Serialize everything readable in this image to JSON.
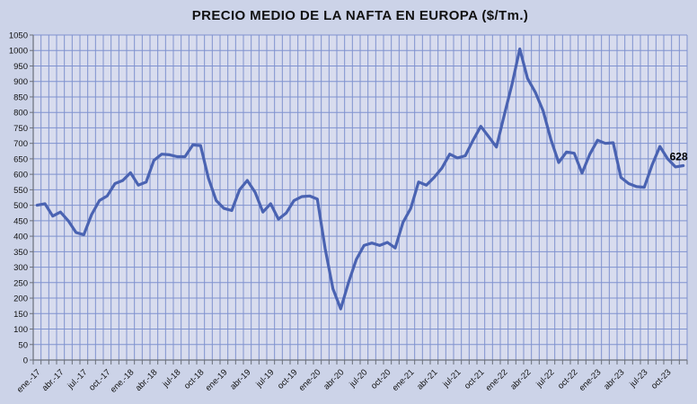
{
  "chart_data": {
    "type": "line",
    "title": "PRECIO MEDIO DE LA NAFTA EN EUROPA ($/Tm.)",
    "xlabel": "",
    "ylabel": "",
    "ylim": [
      0,
      1050
    ],
    "y_tick_step": 50,
    "grid": true,
    "legend": "none",
    "end_label": "628",
    "x_tick_every": 3,
    "x_tick_labels": [
      "ene.-17",
      "abr.-17",
      "jul.-17",
      "oct.-17",
      "ene.-18",
      "abr.-18",
      "jul-18",
      "oct-18",
      "ene-19",
      "abr-19",
      "jul-19",
      "oct-19",
      "ene-20",
      "abr-20",
      "jul-20",
      "oct-20",
      "ene-21",
      "abr-21",
      "jul-21",
      "oct-21",
      "ene-22",
      "abr-22",
      "jul-22",
      "oct-22",
      "ene-23",
      "abr-23",
      "jul-23",
      "oct-23"
    ],
    "categories": [
      "ene-17",
      "feb-17",
      "mar-17",
      "abr-17",
      "may-17",
      "jun-17",
      "jul-17",
      "ago-17",
      "sep-17",
      "oct-17",
      "nov-17",
      "dic-17",
      "ene-18",
      "feb-18",
      "mar-18",
      "abr-18",
      "may-18",
      "jun-18",
      "jul-18",
      "ago-18",
      "sep-18",
      "oct-18",
      "nov-18",
      "dic-18",
      "ene-19",
      "feb-19",
      "mar-19",
      "abr-19",
      "may-19",
      "jun-19",
      "jul-19",
      "ago-19",
      "sep-19",
      "oct-19",
      "nov-19",
      "dic-19",
      "ene-20",
      "feb-20",
      "mar-20",
      "abr-20",
      "may-20",
      "jun-20",
      "jul-20",
      "ago-20",
      "sep-20",
      "oct-20",
      "nov-20",
      "dic-20",
      "ene-21",
      "feb-21",
      "mar-21",
      "abr-21",
      "may-21",
      "jun-21",
      "jul-21",
      "ago-21",
      "sep-21",
      "oct-21",
      "nov-21",
      "dic-21",
      "ene-22",
      "feb-22",
      "mar-22",
      "abr-22",
      "may-22",
      "jun-22",
      "jul-22",
      "ago-22",
      "sep-22",
      "oct-22",
      "nov-22",
      "dic-22",
      "ene-23",
      "feb-23",
      "mar-23",
      "abr-23",
      "may-23",
      "jun-23",
      "jul-23",
      "ago-23",
      "sep-23",
      "oct-23",
      "nov-23",
      "dic-23"
    ],
    "values": [
      500,
      505,
      465,
      478,
      450,
      412,
      405,
      470,
      515,
      530,
      570,
      580,
      605,
      565,
      575,
      645,
      665,
      663,
      657,
      657,
      695,
      693,
      588,
      515,
      490,
      483,
      550,
      580,
      542,
      478,
      505,
      455,
      475,
      515,
      528,
      530,
      520,
      360,
      230,
      165,
      250,
      325,
      370,
      378,
      370,
      380,
      362,
      445,
      490,
      575,
      565,
      590,
      620,
      665,
      653,
      660,
      710,
      755,
      722,
      688,
      790,
      890,
      1005,
      910,
      865,
      805,
      713,
      638,
      672,
      668,
      604,
      665,
      710,
      700,
      702,
      590,
      570,
      560,
      558,
      630,
      690,
      650,
      624,
      628
    ],
    "colors": {
      "page_background": "#ccd3e8",
      "plot_background": "#d8dcee",
      "gridline": "#7f92cf",
      "axis": "#6a6f7a",
      "line": "#4a63b2",
      "text": "#111111",
      "end_label_text": "#000000"
    }
  }
}
